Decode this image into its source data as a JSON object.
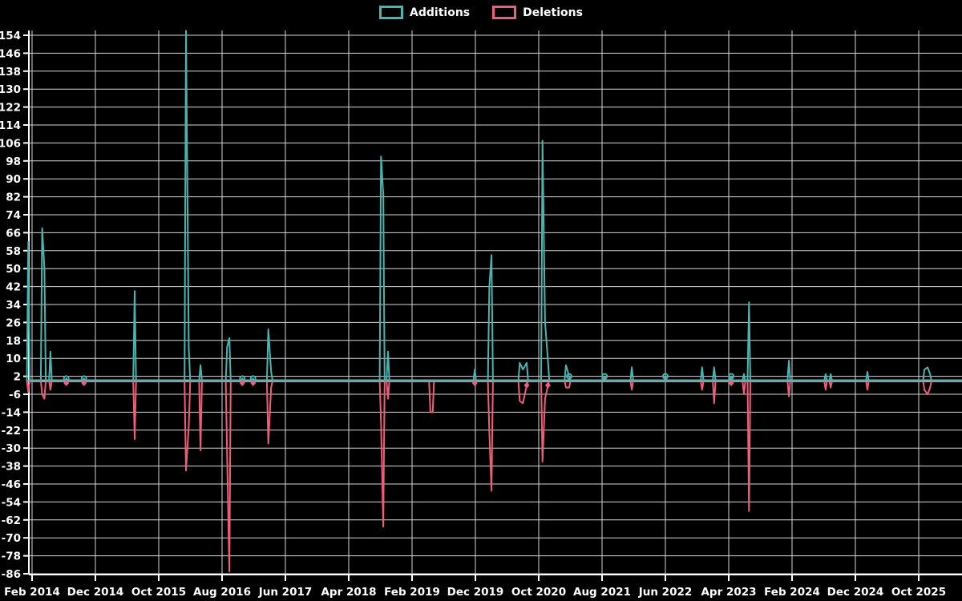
{
  "legend": {
    "items": [
      {
        "label": "Additions",
        "color": "#49b5b1"
      },
      {
        "label": "Deletions",
        "color": "#f05d7a"
      }
    ]
  },
  "colors": {
    "background": "#000000",
    "grid": "#d6d6d6",
    "axis": "#ffffff",
    "zero_line": "#92a8aa",
    "text": "#ffffff",
    "additions": "#49b5b1",
    "deletions": "#f05d7a"
  },
  "chart_data": {
    "type": "line",
    "title": "",
    "grid": true,
    "legend_position": "top-center",
    "y_min": -86,
    "y_max": 154,
    "y_tick_step": 8,
    "x_tick_labels": [
      "Feb 2014",
      "Dec 2014",
      "Oct 2015",
      "Aug 2016",
      "Jun 2017",
      "Apr 2018",
      "Feb 2019",
      "Dec 2019",
      "Oct 2020",
      "Aug 2021",
      "Jun 2022",
      "Apr 2023",
      "Feb 2024",
      "Dec 2024",
      "Oct 2025"
    ],
    "x_tick_spacing_months": 10,
    "x_origin_month": "Jan 2014",
    "series_meta": [
      {
        "name": "Additions",
        "color": "#49b5b1",
        "marker": "circle"
      },
      {
        "name": "Deletions",
        "color": "#f05d7a",
        "marker": "diamond"
      }
    ],
    "points": [
      {
        "m": 0.4,
        "additions": 62,
        "deletions": -5
      },
      {
        "m": 2.6,
        "additions": 68,
        "deletions": -6
      },
      {
        "m": 2.95,
        "additions": 50,
        "deletions": -8
      },
      {
        "m": 3.9,
        "additions": 13,
        "deletions": -4
      },
      {
        "m": 6.4,
        "additions": 1,
        "deletions": -1
      },
      {
        "m": 9.2,
        "additions": 1,
        "deletions": -1
      },
      {
        "m": 17.2,
        "additions": 40,
        "deletions": -26
      },
      {
        "m": 25.3,
        "additions": 156,
        "deletions": -40
      },
      {
        "m": 25.75,
        "additions": 14,
        "deletions": -20
      },
      {
        "m": 27.6,
        "additions": 7,
        "deletions": -31
      },
      {
        "m": 31.8,
        "additions": 15,
        "deletions": -33
      },
      {
        "m": 32.15,
        "additions": 19,
        "deletions": -85
      },
      {
        "m": 34.2,
        "additions": 1,
        "deletions": -1
      },
      {
        "m": 35.9,
        "additions": 1,
        "deletions": -1
      },
      {
        "m": 38.3,
        "additions": 23,
        "deletions": -28
      },
      {
        "m": 38.75,
        "additions": 4,
        "deletions": -3
      },
      {
        "m": 56.1,
        "additions": 100,
        "deletions": -19
      },
      {
        "m": 56.45,
        "additions": 83,
        "deletions": -65
      },
      {
        "m": 57.2,
        "additions": 13,
        "deletions": -8
      },
      {
        "m": 63.9,
        "additions": 0,
        "deletions": -14
      },
      {
        "m": 64.25,
        "additions": 0,
        "deletions": -14
      },
      {
        "m": 70.9,
        "additions": 5,
        "deletions": -1
      },
      {
        "m": 73.2,
        "additions": 42,
        "deletions": -23
      },
      {
        "m": 73.55,
        "additions": 56,
        "deletions": -49
      },
      {
        "m": 78.0,
        "additions": 8,
        "deletions": -9
      },
      {
        "m": 78.5,
        "additions": 5,
        "deletions": -10
      },
      {
        "m": 79.1,
        "additions": 8,
        "deletions": -2
      },
      {
        "m": 81.6,
        "additions": 107,
        "deletions": -36
      },
      {
        "m": 82.0,
        "additions": 26,
        "deletions": -8
      },
      {
        "m": 82.45,
        "additions": 9,
        "deletions": -2
      },
      {
        "m": 85.3,
        "additions": 7,
        "deletions": -3
      },
      {
        "m": 85.8,
        "additions": 2,
        "deletions": -3
      },
      {
        "m": 91.4,
        "additions": 2,
        "deletions": 0
      },
      {
        "m": 95.7,
        "additions": 6,
        "deletions": -4
      },
      {
        "m": 101.0,
        "additions": 2,
        "deletions": 0
      },
      {
        "m": 106.8,
        "additions": 6,
        "deletions": -4
      },
      {
        "m": 108.7,
        "additions": 6,
        "deletions": -10
      },
      {
        "m": 111.4,
        "additions": 2,
        "deletions": -1
      },
      {
        "m": 113.4,
        "additions": 3,
        "deletions": -6
      },
      {
        "m": 114.2,
        "additions": 35,
        "deletions": -58
      },
      {
        "m": 120.5,
        "additions": 9,
        "deletions": -7
      },
      {
        "m": 126.3,
        "additions": 3,
        "deletions": -4
      },
      {
        "m": 127.1,
        "additions": 3,
        "deletions": -3
      },
      {
        "m": 132.9,
        "additions": 4,
        "deletions": -4
      },
      {
        "m": 141.9,
        "additions": 5,
        "deletions": -4
      },
      {
        "m": 142.4,
        "additions": 6,
        "deletions": -6
      },
      {
        "m": 142.8,
        "additions": 3,
        "deletions": -3
      }
    ]
  }
}
